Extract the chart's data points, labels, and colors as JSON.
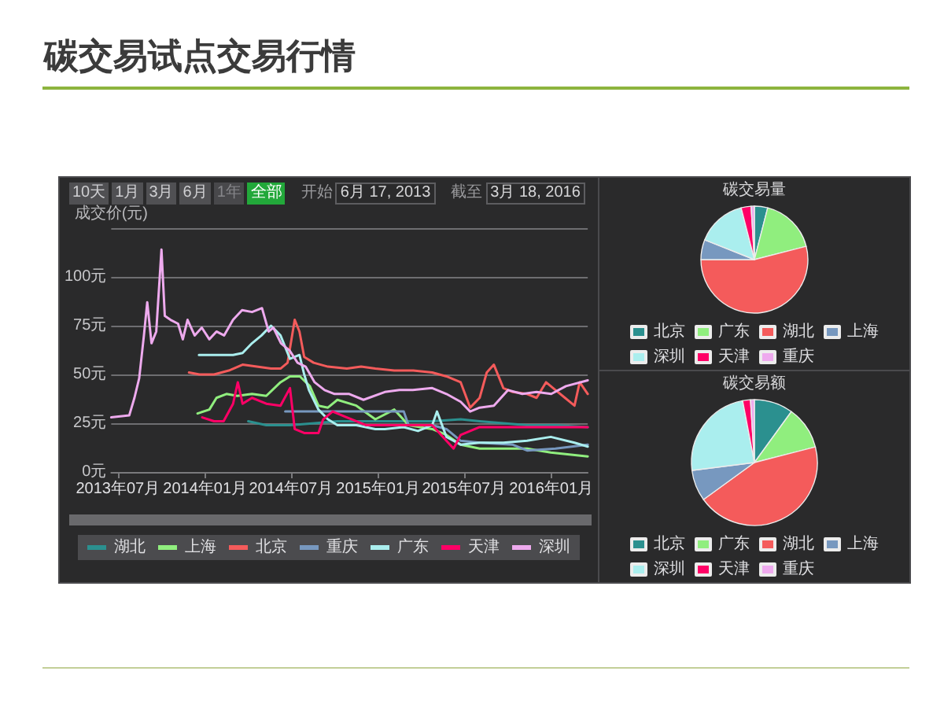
{
  "chart_data": [
    {
      "type": "line",
      "title": "碳交易试点交易行情",
      "ylabel": "成交价(元)",
      "annotations": [
        "10天",
        "1月",
        "3月",
        "6月",
        "1年",
        "全部",
        "开始",
        "6月 17, 2013",
        "截至",
        "3月 18, 2016"
      ],
      "xlim": [
        "2013-06-17",
        "2016-03-18"
      ],
      "xticks": [
        {
          "value": "2013-07",
          "label": "2013年07月"
        },
        {
          "value": "2014-01",
          "label": "2014年01月"
        },
        {
          "value": "2014-07",
          "label": "2014年07月"
        },
        {
          "value": "2015-01",
          "label": "2015年01月"
        },
        {
          "value": "2015-07",
          "label": "2015年07月"
        },
        {
          "value": "2016-01",
          "label": "2016年01月"
        }
      ],
      "ylim": [
        0,
        125
      ],
      "yticks": [
        {
          "value": 0,
          "label": "0元"
        },
        {
          "value": 25,
          "label": "25元"
        },
        {
          "value": 50,
          "label": "50元"
        },
        {
          "value": 75,
          "label": "75元"
        },
        {
          "value": 100,
          "label": "100元"
        },
        {
          "value": 125,
          "label": null
        }
      ],
      "grid": "y",
      "legend": "bottom",
      "marker": "none",
      "series": [
        {
          "name": "湖北",
          "color": "#2b908f",
          "x": [
            "2014-04-02",
            "2014-05-10",
            "2014-06-29",
            "2014-08-20",
            "2014-10-07",
            "2014-12-01",
            "2015-01-15",
            "2015-03-01",
            "2015-04-25",
            "2015-06-24",
            "2015-08-03",
            "2015-09-22",
            "2015-11-11",
            "2016-01-10",
            "2016-03-18"
          ],
          "values": [
            26,
            24,
            24,
            25,
            26,
            26,
            26,
            26,
            26,
            27,
            26,
            25,
            24,
            24,
            23
          ]
        },
        {
          "name": "上海",
          "color": "#90ee7e",
          "x": [
            "2013-12-16",
            "2014-01-10",
            "2014-01-25",
            "2014-02-15",
            "2014-03-10",
            "2014-04-10",
            "2014-05-10",
            "2014-06-09",
            "2014-06-29",
            "2014-07-20",
            "2014-08-10",
            "2014-08-28",
            "2014-09-17",
            "2014-10-07",
            "2014-11-16",
            "2014-12-26",
            "2015-02-04",
            "2015-03-06",
            "2015-04-25",
            "2015-05-25",
            "2015-06-24",
            "2015-08-03",
            "2015-09-22",
            "2015-11-11",
            "2015-12-31",
            "2016-03-18"
          ],
          "values": [
            30,
            32,
            38,
            40,
            39,
            40,
            39,
            46,
            49,
            49,
            44,
            34,
            33,
            37,
            34,
            27,
            32,
            24,
            22,
            19,
            14,
            12,
            12,
            12,
            10,
            8
          ]
        },
        {
          "name": "北京",
          "color": "#f45b5b",
          "x": [
            "2013-11-28",
            "2013-12-20",
            "2014-01-20",
            "2014-02-20",
            "2014-03-21",
            "2014-04-20",
            "2014-05-20",
            "2014-06-09",
            "2014-06-24",
            "2014-07-09",
            "2014-07-19",
            "2014-07-29",
            "2014-08-18",
            "2014-09-17",
            "2014-10-27",
            "2014-11-26",
            "2014-12-26",
            "2015-02-04",
            "2015-03-16",
            "2015-04-25",
            "2015-05-25",
            "2015-06-24",
            "2015-07-14",
            "2015-08-03",
            "2015-08-18",
            "2015-09-02",
            "2015-09-22",
            "2015-10-12",
            "2015-11-11",
            "2015-12-01",
            "2015-12-21",
            "2016-01-10",
            "2016-01-30",
            "2016-02-19",
            "2016-03-01",
            "2016-03-18"
          ],
          "values": [
            51,
            50,
            50,
            52,
            55,
            54,
            53,
            53,
            56,
            78,
            72,
            59,
            56,
            54,
            53,
            54,
            53,
            52,
            52,
            51,
            49,
            46,
            33,
            38,
            51,
            55,
            43,
            41,
            40,
            38,
            46,
            42,
            38,
            34,
            46,
            40
          ]
        },
        {
          "name": "重庆",
          "color": "#7798bf",
          "x": [
            "2014-06-19",
            "2014-09-17",
            "2014-12-26",
            "2015-02-24",
            "2015-03-06",
            "2015-04-25",
            "2015-05-25",
            "2015-06-24",
            "2015-08-03",
            "2015-10-12",
            "2015-11-11",
            "2016-01-10",
            "2016-03-18"
          ],
          "values": [
            31,
            31,
            31,
            31,
            24,
            24,
            22,
            16,
            15,
            14,
            11,
            12,
            14
          ]
        },
        {
          "name": "广东",
          "color": "#aaeeee",
          "x": [
            "2013-12-19",
            "2014-03-01",
            "2014-03-21",
            "2014-04-10",
            "2014-04-30",
            "2014-05-20",
            "2014-06-09",
            "2014-06-29",
            "2014-07-19",
            "2014-07-29",
            "2014-08-08",
            "2014-08-28",
            "2014-09-17",
            "2014-10-07",
            "2014-11-16",
            "2014-12-26",
            "2015-01-15",
            "2015-02-24",
            "2015-03-26",
            "2015-04-25",
            "2015-05-05",
            "2015-05-25",
            "2015-06-24",
            "2015-08-03",
            "2015-09-22",
            "2015-11-11",
            "2015-12-31",
            "2016-02-19",
            "2016-03-18"
          ],
          "values": [
            60,
            60,
            61,
            66,
            70,
            75,
            70,
            58,
            60,
            50,
            42,
            32,
            27,
            24,
            24,
            22,
            22,
            23,
            21,
            24,
            31,
            18,
            14,
            15,
            15,
            16,
            18,
            15,
            13
          ]
        },
        {
          "name": "天津",
          "color": "#ff0066",
          "x": [
            "2013-12-26",
            "2014-01-20",
            "2014-02-09",
            "2014-03-01",
            "2014-03-11",
            "2014-03-21",
            "2014-04-10",
            "2014-05-10",
            "2014-06-09",
            "2014-06-29",
            "2014-07-09",
            "2014-07-29",
            "2014-08-28",
            "2014-09-07",
            "2014-09-27",
            "2014-10-27",
            "2014-12-06",
            "2015-01-15",
            "2015-04-25",
            "2015-06-09",
            "2015-06-24",
            "2015-08-03",
            "2015-10-12",
            "2015-12-21",
            "2016-03-18"
          ],
          "values": [
            28,
            26,
            26,
            35,
            46,
            35,
            38,
            35,
            34,
            43,
            22,
            20,
            20,
            27,
            31,
            28,
            24,
            24,
            24,
            12,
            19,
            23,
            23,
            23,
            23
          ]
        },
        {
          "name": "深圳",
          "color": "#eeaaee",
          "x": [
            "2013-06-17",
            "2013-07-25",
            "2013-08-05",
            "2013-08-15",
            "2013-08-25",
            "2013-09-01",
            "2013-09-10",
            "2013-09-20",
            "2013-10-01",
            "2013-10-08",
            "2013-10-20",
            "2013-11-05",
            "2013-11-15",
            "2013-11-25",
            "2013-12-10",
            "2013-12-25",
            "2014-01-10",
            "2014-01-25",
            "2014-02-10",
            "2014-03-01",
            "2014-03-20",
            "2014-04-10",
            "2014-05-01",
            "2014-05-15",
            "2014-05-25",
            "2014-06-10",
            "2014-06-29",
            "2014-07-15",
            "2014-08-01",
            "2014-08-20",
            "2014-09-10",
            "2014-10-01",
            "2014-11-01",
            "2014-12-01",
            "2015-01-15",
            "2015-02-15",
            "2015-03-15",
            "2015-04-25",
            "2015-05-25",
            "2015-06-24",
            "2015-07-14",
            "2015-08-03",
            "2015-09-02",
            "2015-10-02",
            "2015-11-01",
            "2015-12-01",
            "2016-01-01",
            "2016-02-01",
            "2016-03-18"
          ],
          "values": [
            28,
            29,
            38,
            48,
            70,
            87,
            66,
            72,
            114,
            80,
            78,
            76,
            68,
            78,
            70,
            74,
            68,
            72,
            70,
            78,
            83,
            82,
            84,
            72,
            74,
            66,
            62,
            56,
            54,
            46,
            42,
            40,
            40,
            37,
            41,
            42,
            42,
            43,
            40,
            36,
            31,
            33,
            34,
            42,
            40,
            41,
            40,
            44,
            47
          ]
        }
      ]
    },
    {
      "type": "pie",
      "title": "碳交易量",
      "categories": [
        "北京",
        "广东",
        "湖北",
        "上海",
        "深圳",
        "天津",
        "重庆"
      ],
      "values": [
        4,
        17,
        54,
        6,
        15,
        3,
        1
      ],
      "colors": [
        "#2b908f",
        "#90ee7e",
        "#f45b5b",
        "#7798bf",
        "#aaeeee",
        "#ff0066",
        "#eeaaee"
      ],
      "legend": "bottom"
    },
    {
      "type": "pie",
      "title": "碳交易额",
      "categories": [
        "北京",
        "广东",
        "湖北",
        "上海",
        "深圳",
        "天津",
        "重庆"
      ],
      "values": [
        10,
        11,
        44,
        8,
        24,
        2,
        1
      ],
      "colors": [
        "#2b908f",
        "#90ee7e",
        "#f45b5b",
        "#7798bf",
        "#aaeeee",
        "#ff0066",
        "#eeaaee"
      ],
      "legend": "bottom"
    }
  ]
}
